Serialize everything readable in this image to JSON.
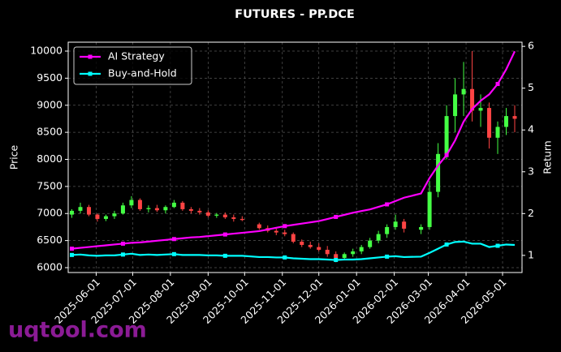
{
  "chart_data": {
    "type": "candlestick",
    "title": "FUTURES - PP.DCE",
    "ylabel": "Price",
    "y2label": "Return",
    "watermark": "uqtool.com",
    "x": [
      "2025-05-12",
      "2025-05-19",
      "2025-05-26",
      "2025-06-02",
      "2025-06-09",
      "2025-06-16",
      "2025-06-23",
      "2025-06-30",
      "2025-07-07",
      "2025-07-14",
      "2025-07-21",
      "2025-07-28",
      "2025-08-04",
      "2025-08-11",
      "2025-08-18",
      "2025-08-25",
      "2025-09-01",
      "2025-09-08",
      "2025-09-15",
      "2025-09-22",
      "2025-09-29",
      "2025-10-13",
      "2025-10-20",
      "2025-10-27",
      "2025-11-03",
      "2025-11-10",
      "2025-11-17",
      "2025-11-24",
      "2025-12-01",
      "2025-12-08",
      "2025-12-15",
      "2025-12-22",
      "2025-12-29",
      "2026-01-05",
      "2026-01-12",
      "2026-01-19",
      "2026-01-26",
      "2026-02-02",
      "2026-02-09",
      "2026-02-23",
      "2026-03-02",
      "2026-03-09",
      "2026-03-16",
      "2026-03-23",
      "2026-03-30",
      "2026-04-06",
      "2026-04-13",
      "2026-04-20",
      "2026-04-27",
      "2026-05-04",
      "2026-05-11"
    ],
    "open": [
      6980,
      7050,
      7120,
      6980,
      6900,
      6950,
      7000,
      7150,
      7250,
      7080,
      7100,
      7060,
      7120,
      7200,
      7080,
      7050,
      7020,
      6960,
      6980,
      6930,
      6900,
      6800,
      6730,
      6680,
      6650,
      6620,
      6480,
      6420,
      6380,
      6330,
      6250,
      6180,
      6250,
      6300,
      6380,
      6500,
      6620,
      6750,
      6850,
      6700,
      6750,
      7400,
      8100,
      8800,
      9200,
      9300,
      8900,
      8950,
      8400,
      8600,
      8800
    ],
    "high": [
      7080,
      7200,
      7160,
      7000,
      6980,
      7050,
      7200,
      7320,
      7280,
      7150,
      7160,
      7150,
      7250,
      7230,
      7120,
      7100,
      7060,
      7010,
      7020,
      6980,
      6950,
      6830,
      6780,
      6720,
      6700,
      6650,
      6520,
      6480,
      6450,
      6400,
      6300,
      6280,
      6350,
      6420,
      6550,
      6680,
      6800,
      6980,
      6900,
      6800,
      7600,
      8300,
      9000,
      9500,
      9800,
      10000,
      9200,
      9050,
      8700,
      8950,
      9000
    ],
    "low": [
      6920,
      7000,
      6950,
      6850,
      6860,
      6900,
      6980,
      7100,
      7050,
      7020,
      7030,
      7000,
      7100,
      7050,
      7000,
      6980,
      6930,
      6920,
      6900,
      6850,
      6860,
      6700,
      6650,
      6600,
      6580,
      6450,
      6380,
      6350,
      6300,
      6200,
      6100,
      6150,
      6200,
      6250,
      6350,
      6450,
      6550,
      6700,
      6650,
      6620,
      6700,
      7300,
      8000,
      8500,
      8800,
      8700,
      8600,
      8200,
      8100,
      8450,
      8500
    ],
    "close": [
      7050,
      7120,
      6980,
      6900,
      6950,
      7000,
      7150,
      7250,
      7080,
      7100,
      7060,
      7120,
      7200,
      7080,
      7050,
      7020,
      6960,
      6980,
      6930,
      6900,
      6880,
      6730,
      6680,
      6650,
      6620,
      6480,
      6420,
      6380,
      6330,
      6250,
      6180,
      6250,
      6300,
      6380,
      6500,
      6620,
      6750,
      6850,
      6720,
      6750,
      7400,
      8100,
      8800,
      9200,
      9300,
      8900,
      8950,
      8400,
      8600,
      8800,
      8750
    ],
    "up_color": "#44ff44",
    "down_color": "#ff4444",
    "series": [
      {
        "name": "AI Strategy",
        "color": "#ff00ff",
        "axis": "y2",
        "values": [
          1.16,
          1.18,
          1.2,
          1.22,
          1.24,
          1.26,
          1.28,
          1.3,
          1.31,
          1.33,
          1.35,
          1.37,
          1.39,
          1.41,
          1.43,
          1.44,
          1.46,
          1.48,
          1.5,
          1.52,
          1.54,
          1.58,
          1.62,
          1.66,
          1.7,
          1.73,
          1.76,
          1.79,
          1.82,
          1.87,
          1.92,
          1.97,
          2.02,
          2.06,
          2.1,
          2.16,
          2.22,
          2.3,
          2.38,
          2.48,
          2.85,
          3.15,
          3.4,
          3.75,
          4.2,
          4.5,
          4.7,
          4.85,
          5.1,
          5.45,
          5.88
        ]
      },
      {
        "name": "Buy-and-Hold",
        "color": "#00ffff",
        "axis": "y2",
        "values": [
          1.01,
          1.02,
          1.0,
          0.99,
          1.0,
          1.0,
          1.02,
          1.04,
          1.01,
          1.02,
          1.01,
          1.02,
          1.03,
          1.01,
          1.01,
          1.01,
          1.0,
          1.0,
          0.99,
          0.99,
          0.99,
          0.96,
          0.96,
          0.95,
          0.95,
          0.93,
          0.92,
          0.91,
          0.91,
          0.9,
          0.89,
          0.9,
          0.9,
          0.91,
          0.93,
          0.95,
          0.97,
          0.98,
          0.96,
          0.97,
          1.06,
          1.16,
          1.26,
          1.32,
          1.33,
          1.28,
          1.28,
          1.2,
          1.23,
          1.26,
          1.25
        ]
      }
    ],
    "xlim": [
      "2025-05-09",
      "2026-05-17"
    ],
    "xticks": [
      "2025-06-01",
      "2025-07-01",
      "2025-08-01",
      "2025-09-01",
      "2025-10-01",
      "2025-11-01",
      "2025-12-01",
      "2026-01-01",
      "2026-02-01",
      "2026-03-01",
      "2026-04-01",
      "2026-05-01"
    ],
    "ylim": [
      5910,
      10165
    ],
    "yticks": [
      6000,
      6500,
      7000,
      7500,
      8000,
      8500,
      9000,
      9500,
      10000
    ],
    "y2lim": [
      0.59,
      6.1
    ],
    "y2ticks": [
      1,
      2,
      3,
      4,
      5,
      6
    ],
    "grid": true,
    "legend": "upper left"
  }
}
